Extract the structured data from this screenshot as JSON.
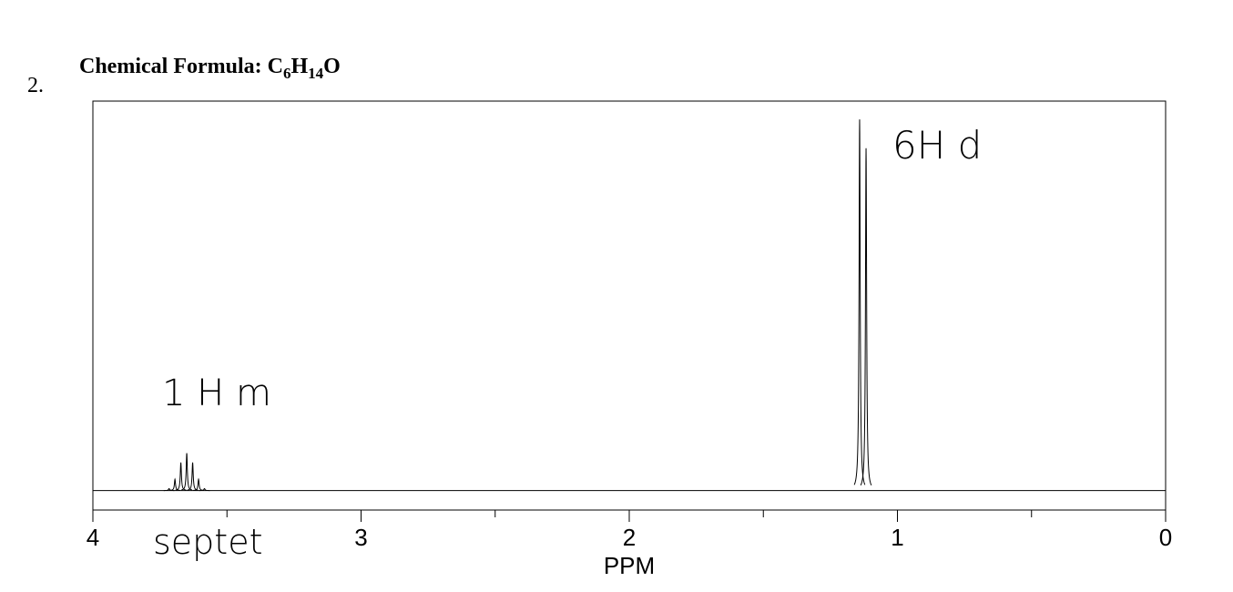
{
  "number": "2.",
  "chart_data": {
    "type": "spectrum",
    "title": [
      "Chemical Formula: C",
      "6",
      "H",
      "14",
      "O"
    ],
    "x_label": "PPM",
    "xlim": [
      4,
      0
    ],
    "xticks": [
      4,
      3,
      2,
      1,
      0
    ],
    "minor_xticks": [
      3.5,
      2.5,
      1.5,
      0.5
    ],
    "ylim": [
      -5,
      100
    ],
    "x": [
      3.716,
      3.694,
      3.672,
      3.65,
      3.628,
      3.606,
      3.584,
      1.141,
      1.117
    ],
    "values": [
      0.5,
      2.9,
      7.2,
      9.6,
      7.2,
      2.9,
      0.5,
      95.3,
      87.9
    ],
    "color": "#000000",
    "annotations": [
      "6H d",
      "1 H m",
      "septet"
    ]
  }
}
